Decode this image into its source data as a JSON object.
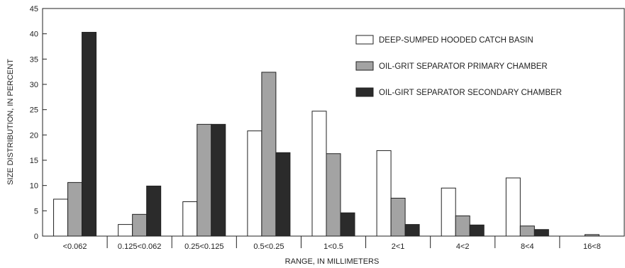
{
  "chart_data": {
    "type": "bar",
    "title": "",
    "xlabel": "RANGE, IN MILLIMETERS",
    "ylabel": "SIZE DISTRIBUTION, IN PERCENT",
    "ylim": [
      0,
      45
    ],
    "yticks": [
      0,
      5,
      10,
      15,
      20,
      25,
      30,
      35,
      40,
      45
    ],
    "yticks_labels": [
      "0",
      "5",
      "10",
      "15",
      "20",
      "25",
      "30",
      "35",
      "40",
      "45"
    ],
    "grid": false,
    "legend_position": "top-right",
    "categories": [
      "<0.062",
      "0.125<0.062",
      "0.25<0.125",
      "0.5<0.25",
      "1<0.5",
      "2<1",
      "4<2",
      "8<4",
      "16<8"
    ],
    "series": [
      {
        "name": "DEEP-SUMPED HOODED CATCH BASIN",
        "color": "#ffffff",
        "values": [
          7.3,
          2.3,
          6.8,
          20.8,
          24.7,
          16.9,
          9.5,
          11.5,
          0
        ]
      },
      {
        "name": "OIL-GRIT SEPARATOR PRIMARY CHAMBER",
        "color": "#a3a3a3",
        "values": [
          10.6,
          4.3,
          22.1,
          32.4,
          16.3,
          7.5,
          4.0,
          2.0,
          0.3
        ]
      },
      {
        "name": "OIL-GIRT SEPARATOR SECONDARY CHAMBER",
        "color": "#2b2b2b",
        "values": [
          40.3,
          9.9,
          22.1,
          16.5,
          4.6,
          2.3,
          2.2,
          1.3,
          0
        ]
      }
    ]
  }
}
